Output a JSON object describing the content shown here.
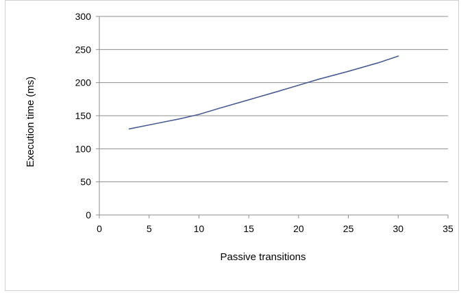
{
  "chart_data": {
    "type": "line",
    "title": "",
    "xlabel": "Passive transitions",
    "ylabel": "Execution time (ms)",
    "xlim": [
      0,
      35
    ],
    "ylim": [
      0,
      300
    ],
    "x_ticks": [
      0,
      5,
      10,
      15,
      20,
      25,
      30,
      35
    ],
    "y_ticks": [
      0,
      50,
      100,
      150,
      200,
      250,
      300
    ],
    "x_tick_labels": [
      "0",
      "5",
      "10",
      "15",
      "20",
      "25",
      "30",
      "35"
    ],
    "y_tick_labels": [
      "0",
      "50",
      "100",
      "150",
      "200",
      "250",
      "300"
    ],
    "grid": "horizontal",
    "legend": "none",
    "series": [
      {
        "x": [
          3,
          5,
          8,
          10,
          12,
          15,
          18,
          20,
          22,
          25,
          28,
          30
        ],
        "y": [
          130,
          136,
          145,
          152,
          161,
          174,
          187,
          196,
          205,
          217,
          230,
          240
        ]
      }
    ],
    "colors": {
      "line": "#4a5c95",
      "grid": "#8c8c8c",
      "axis": "#8c8c8c"
    }
  }
}
